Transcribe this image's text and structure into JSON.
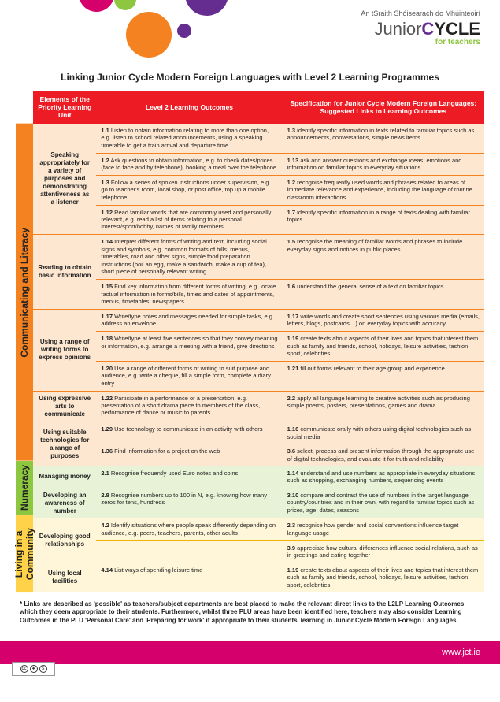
{
  "brand": {
    "tagline_ga": "An tSraith Shóisearach do Mhúinteoirí",
    "name_a": "Junior",
    "name_b": "CYCLE",
    "subtitle": "for teachers"
  },
  "title": "Linking Junior Cycle Modern Foreign Languages with Level 2 Learning Programmes",
  "headers": {
    "col1": "Elements of the Priority Learning Unit",
    "col2": "Level 2 Learning Outcomes",
    "col3": "Specification for Junior Cycle Modern Foreign Languages: Suggested Links to Learning Outcomes"
  },
  "sections": [
    {
      "id": "comm",
      "vlabel": "Communicating and Literacy",
      "color": "orange",
      "rows": [
        {
          "plu": "Speaking appropriately for a variety of purposes and demonstrating attentiveness as a listener",
          "pairs": [
            {
              "l2": "<span class='b'>1.1</span> Listen to obtain information relating to more than one option, e.g. listen to school related announcements, using a speaking timetable to get a train arrival and departure time",
              "mfl": "<span class='b'>1.3</span> identify specific information in texts related to familiar topics such as announcements, conversations, simple news items"
            },
            {
              "l2": "<span class='b'>1.2</span> Ask questions to obtain information, e.g. to check dates/prices (face to face and by telephone), booking a meal over the telephone",
              "mfl": "<span class='b'>1.13</span> ask and answer questions and exchange ideas, emotions and information on familiar topics in everyday situations"
            },
            {
              "l2": "<span class='b'>1.3</span> Follow a series of spoken instructions under supervision, e.g. go to teacher's room, local shop, or post office, top up a mobile telephone",
              "mfl": "<span class='b'>1.2</span> recognise frequently used words and phrases related to areas of immediate relevance and experience, including the language of routine classroom interactions"
            },
            {
              "l2": "<span class='b'>1.12</span> Read familiar words that are commonly used and personally relevant, e.g. read a list of items relating to a personal interest/sport/hobby, names of family members",
              "mfl": "<span class='b'>1.7</span> identify specific information in a range of texts dealing with familiar topics"
            }
          ]
        },
        {
          "plu": "Reading to obtain basic information",
          "pairs": [
            {
              "l2": "<span class='b'>1.14</span> Interpret different forms of writing and text, including social signs and symbols, e.g. common formats of bills, menus, timetables, road and other signs, simple food preparation instructions (boil an egg, make a sandwich, make a cup of tea), short piece of personally relevant writing",
              "mfl": "<span class='b'>1.5</span> recognise the meaning of familiar words and phrases to include everyday signs and notices in public places"
            },
            {
              "l2": "<span class='b'>1.15</span> Find key information from different forms of writing, e.g. locate factual information in forms/bills, times and dates of appointments, menus, timetables, newspapers",
              "mfl": "<span class='b'>1.6</span> understand the general sense of a text on familiar topics"
            }
          ]
        },
        {
          "plu": "Using a range of writing forms to express opinions",
          "pairs": [
            {
              "l2": "<span class='b'>1.17</span> Write/type notes and messages needed for simple tasks, e.g. address an envelope",
              "mfl": "<span class='b'>1.17</span> write words and create short sentences using various media (emails, letters, blogs, postcards…) on everyday topics with accuracy"
            },
            {
              "l2": "<span class='b'>1.18</span> Write/type at least five sentences so that they convey meaning or information, e.g. arrange a meeting with a friend, give directions",
              "mfl": "<span class='b'>1.19</span> create texts about aspects of their lives and topics that interest them such as family and friends, school, holidays, leisure activities, fashion, sport, celebrities"
            },
            {
              "l2": "<span class='b'>1.20</span> Use a range of different forms of writing to suit purpose and audience, e.g. write a cheque, fill a simple form, complete a diary entry",
              "mfl": "<span class='b'>1.21</span> fill out forms relevant to their age group and experience"
            }
          ]
        },
        {
          "plu": "Using expressive arts to communicate",
          "pairs": [
            {
              "l2": "<span class='b'>1.22</span> Participate in a performance or a presentation, e.g. presentation of a short drama piece to members of the class, performance of dance or music to parents",
              "mfl": "<span class='b'>2.2</span> apply all language learning to creative activities such as producing simple poems, posters, presentations, games and drama"
            }
          ]
        },
        {
          "plu": "Using suitable technologies for a range of purposes",
          "pairs": [
            {
              "l2": "<span class='b'>1.29</span> Use technology to communicate in an activity with others",
              "mfl": "<span class='b'>1.16</span> communicate orally with others using digital technologies such as social media"
            },
            {
              "l2": "<span class='b'>1.36</span> Find information for a project on the web",
              "mfl": "<span class='b'>3.6</span> select, process and present information through the appropriate use of digital technologies, and evaluate it for truth and reliability"
            }
          ]
        }
      ]
    },
    {
      "id": "num",
      "vlabel": "Numeracy",
      "color": "green",
      "rows": [
        {
          "plu": "Managing money",
          "pairs": [
            {
              "l2": "<span class='b'>2.1</span> Recognise frequently used Euro notes and coins",
              "mfl": "<span class='b'>1.14</span> understand and use numbers as appropriate in everyday situations such as shopping, exchanging numbers, sequencing events"
            }
          ]
        },
        {
          "plu": "Developing an awareness of number",
          "pairs": [
            {
              "l2": "<span class='b'>2.8</span> Recognise numbers up to 100 in N, e.g. knowing how many zeros for tens, hundreds",
              "mfl": "<span class='b'>3.10</span> compare and contrast the use of numbers in the target language country/countries and in their own, with regard to familiar topics such as prices, age, dates, seasons"
            }
          ]
        }
      ]
    },
    {
      "id": "comm2",
      "vlabel": "Living in a Community",
      "color": "yellow",
      "rows": [
        {
          "plu": "Developing good relationships",
          "pairs": [
            {
              "l2": "<span class='b'>4.2</span> Identify situations where people speak differently depending on audience, e.g. peers, teachers, parents, other adults",
              "mfl": "<span class='b'>2.3</span> recognise how gender and social conventions influence target language usage"
            },
            {
              "l2": "",
              "mfl": "<span class='b'>3.9</span> appreciate how cultural differences influence social relations, such as in greetings and eating together"
            }
          ]
        },
        {
          "plu": "Using local facilities",
          "pairs": [
            {
              "l2": "<span class='b'>4.14</span> List ways of spending leisure time",
              "mfl": "<span class='b'>1.19</span> create texts about aspects of their lives and topics that interest them such as family and friends, school, holidays, leisure activities, fashion, sport, celebrities"
            }
          ]
        }
      ]
    }
  ],
  "footnote": "* Links are described as 'possible' as teachers/subject departments are best placed to make the relevant direct links to the L2LP Learning Outcomes which they deem appropriate to their students. Furthermore, whilst three PLU areas have been identified here, teachers may also consider Learning Outcomes in the PLU 'Personal Care' and 'Preparing for work' if appropriate to their students' learning in Junior Cycle Modern Foreign Languages.",
  "footer_url": "www.jct.ie",
  "colors": {
    "red": "#ed1c24",
    "orange": "#f58220",
    "orange_bg": "#fde7d1",
    "green": "#8dc63f",
    "green_bg": "#e7f2d6",
    "yellow": "#ffd24a",
    "yellow_bg": "#fff6d9",
    "magenta": "#d6006d",
    "purple": "#662d91"
  }
}
